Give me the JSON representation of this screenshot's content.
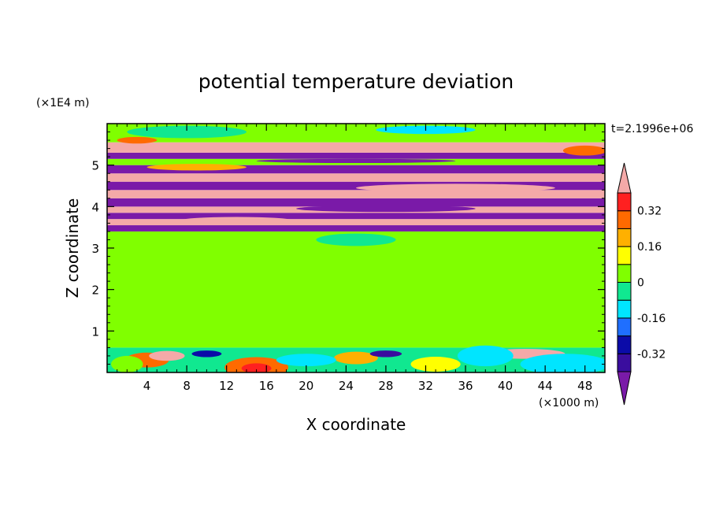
{
  "chart_data": {
    "type": "heatmap",
    "title": "potential temperature deviation",
    "xlabel": "X coordinate",
    "ylabel": "Z coordinate",
    "x_unit": "(×1000 m)",
    "y_unit": "(×1E4 m)",
    "time_label": "t=2.1996e+06",
    "xlim": [
      0,
      50
    ],
    "ylim": [
      0,
      6
    ],
    "x_ticks": [
      4,
      8,
      12,
      16,
      20,
      24,
      28,
      32,
      36,
      40,
      44,
      48
    ],
    "y_ticks": [
      1,
      2,
      3,
      4,
      5
    ],
    "colorbar": {
      "levels": [
        -0.4,
        -0.32,
        -0.24,
        -0.16,
        -0.08,
        0,
        0.08,
        0.16,
        0.24,
        0.32,
        0.4
      ],
      "labels": [
        "-0.32",
        "-0.16",
        "0",
        "0.16",
        "0.32"
      ],
      "label_values": [
        -0.32,
        -0.16,
        0,
        0.16,
        0.32
      ],
      "under_color": "#7a1aa8",
      "over_color": "#f4a9a8",
      "colors": [
        "#3a0d9e",
        "#0b0ba8",
        "#1f6fff",
        "#00e5ff",
        "#10e890",
        "#80ff00",
        "#ffff00",
        "#ffb000",
        "#ff6a00",
        "#ff2020"
      ]
    },
    "bands": [
      {
        "z_range": [
          0,
          0.6
        ],
        "value": -0.08
      },
      {
        "z_range": [
          0.6,
          3.4
        ],
        "value": 0.04
      },
      {
        "z_range": [
          3.4,
          3.55
        ],
        "value": -0.45
      },
      {
        "z_range": [
          3.55,
          3.7
        ],
        "value": 0.45
      },
      {
        "z_range": [
          3.7,
          3.85
        ],
        "value": -0.45
      },
      {
        "z_range": [
          3.85,
          4.0
        ],
        "value": 0.45
      },
      {
        "z_range": [
          4.0,
          4.2
        ],
        "value": -0.45
      },
      {
        "z_range": [
          4.2,
          4.4
        ],
        "value": 0.45
      },
      {
        "z_range": [
          4.4,
          4.6
        ],
        "value": -0.45
      },
      {
        "z_range": [
          4.6,
          4.8
        ],
        "value": 0.45
      },
      {
        "z_range": [
          4.8,
          5.0
        ],
        "value": -0.45
      },
      {
        "z_range": [
          5.0,
          5.15
        ],
        "value": 0.04
      },
      {
        "z_range": [
          5.15,
          5.3
        ],
        "value": -0.45
      },
      {
        "z_range": [
          5.3,
          5.55
        ],
        "value": 0.45
      },
      {
        "z_range": [
          5.55,
          6.0
        ],
        "value": 0.04
      }
    ]
  }
}
